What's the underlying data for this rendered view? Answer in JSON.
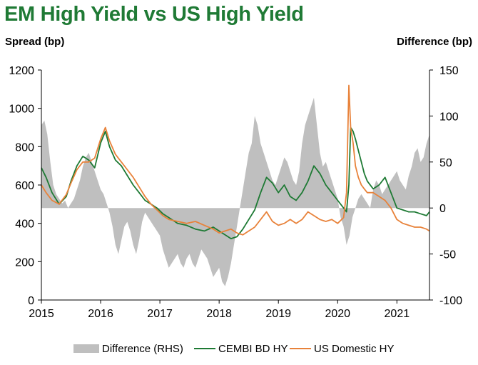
{
  "title": "EM High Yield vs US High Yield",
  "left_axis_label": "Spread (bp)",
  "right_axis_label": "Difference (bp)",
  "legend": [
    "Difference (RHS)",
    "CEMBI BD HY",
    "US Domestic HY"
  ],
  "colors": {
    "title": "#1f7a35",
    "cembi": "#1e7a34",
    "us": "#e8823a",
    "diff": "#bfbfbf"
  },
  "chart_data": {
    "type": "line",
    "title": "EM High Yield vs US High Yield",
    "x_ticks": [
      "2015",
      "2016",
      "2017",
      "2018",
      "2019",
      "2020",
      "2021"
    ],
    "xlim": [
      2015.0,
      2021.55
    ],
    "y_left": {
      "label": "Spread (bp)",
      "lim": [
        0,
        1200
      ],
      "ticks": [
        0,
        200,
        400,
        600,
        800,
        1000,
        1200
      ]
    },
    "y_right": {
      "label": "Difference (bp)",
      "lim": [
        -100,
        150
      ],
      "ticks": [
        -100,
        -50,
        0,
        50,
        100,
        150
      ]
    },
    "series": [
      {
        "name": "CEMBI BD HY",
        "axis": "left",
        "type": "line",
        "x": [
          2015.0,
          2015.08,
          2015.18,
          2015.3,
          2015.42,
          2015.5,
          2015.6,
          2015.7,
          2015.8,
          2015.9,
          2016.0,
          2016.08,
          2016.15,
          2016.25,
          2016.35,
          2016.45,
          2016.55,
          2016.65,
          2016.75,
          2016.85,
          2016.95,
          2017.05,
          2017.15,
          2017.3,
          2017.45,
          2017.6,
          2017.75,
          2017.9,
          2018.0,
          2018.1,
          2018.2,
          2018.3,
          2018.4,
          2018.5,
          2018.6,
          2018.7,
          2018.8,
          2018.9,
          2019.0,
          2019.1,
          2019.2,
          2019.3,
          2019.4,
          2019.5,
          2019.6,
          2019.7,
          2019.8,
          2019.9,
          2020.0,
          2020.1,
          2020.15,
          2020.19,
          2020.22,
          2020.26,
          2020.3,
          2020.35,
          2020.4,
          2020.45,
          2020.5,
          2020.6,
          2020.7,
          2020.8,
          2020.9,
          2021.0,
          2021.1,
          2021.2,
          2021.3,
          2021.4,
          2021.5,
          2021.55
        ],
        "y": [
          690,
          640,
          560,
          500,
          540,
          620,
          700,
          750,
          730,
          690,
          820,
          880,
          800,
          730,
          700,
          650,
          600,
          560,
          520,
          500,
          480,
          450,
          430,
          400,
          390,
          370,
          360,
          380,
          360,
          340,
          320,
          330,
          370,
          420,
          470,
          560,
          640,
          610,
          560,
          600,
          540,
          520,
          560,
          620,
          700,
          660,
          600,
          560,
          520,
          480,
          460,
          600,
          900,
          880,
          840,
          780,
          720,
          660,
          620,
          580,
          600,
          640,
          560,
          480,
          470,
          460,
          460,
          450,
          440,
          460
        ],
        "color": "#1e7a34"
      },
      {
        "name": "US Domestic HY",
        "axis": "left",
        "type": "line",
        "x": [
          2015.0,
          2015.08,
          2015.18,
          2015.3,
          2015.42,
          2015.5,
          2015.6,
          2015.7,
          2015.8,
          2015.9,
          2016.0,
          2016.08,
          2016.15,
          2016.25,
          2016.35,
          2016.45,
          2016.55,
          2016.65,
          2016.75,
          2016.85,
          2016.95,
          2017.05,
          2017.15,
          2017.3,
          2017.45,
          2017.6,
          2017.75,
          2017.9,
          2018.0,
          2018.1,
          2018.2,
          2018.3,
          2018.4,
          2018.5,
          2018.6,
          2018.7,
          2018.8,
          2018.9,
          2019.0,
          2019.1,
          2019.2,
          2019.3,
          2019.4,
          2019.5,
          2019.6,
          2019.7,
          2019.8,
          2019.9,
          2020.0,
          2020.1,
          2020.15,
          2020.19,
          2020.22,
          2020.26,
          2020.3,
          2020.35,
          2020.4,
          2020.45,
          2020.5,
          2020.6,
          2020.7,
          2020.8,
          2020.9,
          2021.0,
          2021.1,
          2021.2,
          2021.3,
          2021.4,
          2021.5,
          2021.55
        ],
        "y": [
          600,
          560,
          520,
          500,
          550,
          610,
          680,
          720,
          720,
          740,
          840,
          900,
          830,
          760,
          720,
          680,
          640,
          590,
          540,
          500,
          470,
          440,
          420,
          410,
          400,
          410,
          390,
          370,
          350,
          360,
          370,
          350,
          340,
          360,
          380,
          420,
          460,
          410,
          390,
          400,
          420,
          400,
          420,
          460,
          440,
          420,
          410,
          420,
          400,
          430,
          560,
          1120,
          900,
          820,
          700,
          640,
          600,
          580,
          560,
          560,
          540,
          520,
          480,
          420,
          400,
          390,
          380,
          380,
          370,
          360
        ],
        "color": "#e8823a"
      },
      {
        "name": "Difference (RHS)",
        "axis": "right",
        "type": "area",
        "x": [
          2015.0,
          2015.05,
          2015.1,
          2015.15,
          2015.2,
          2015.25,
          2015.3,
          2015.35,
          2015.4,
          2015.45,
          2015.5,
          2015.55,
          2015.6,
          2015.65,
          2015.7,
          2015.75,
          2015.8,
          2015.85,
          2015.9,
          2015.95,
          2016.0,
          2016.05,
          2016.1,
          2016.15,
          2016.2,
          2016.25,
          2016.3,
          2016.35,
          2016.4,
          2016.45,
          2016.5,
          2016.55,
          2016.6,
          2016.65,
          2016.7,
          2016.75,
          2016.8,
          2016.85,
          2016.9,
          2016.95,
          2017.0,
          2017.05,
          2017.1,
          2017.15,
          2017.2,
          2017.25,
          2017.3,
          2017.35,
          2017.4,
          2017.45,
          2017.5,
          2017.55,
          2017.6,
          2017.65,
          2017.7,
          2017.75,
          2017.8,
          2017.85,
          2017.9,
          2017.95,
          2018.0,
          2018.05,
          2018.1,
          2018.15,
          2018.2,
          2018.25,
          2018.3,
          2018.35,
          2018.4,
          2018.45,
          2018.5,
          2018.55,
          2018.6,
          2018.65,
          2018.7,
          2018.75,
          2018.8,
          2018.85,
          2018.9,
          2018.95,
          2019.0,
          2019.05,
          2019.1,
          2019.15,
          2019.2,
          2019.25,
          2019.3,
          2019.35,
          2019.4,
          2019.45,
          2019.5,
          2019.55,
          2019.6,
          2019.65,
          2019.7,
          2019.75,
          2019.8,
          2019.85,
          2019.9,
          2019.95,
          2020.0,
          2020.05,
          2020.1,
          2020.15,
          2020.2,
          2020.25,
          2020.3,
          2020.35,
          2020.4,
          2020.45,
          2020.5,
          2020.55,
          2020.6,
          2020.65,
          2020.7,
          2020.75,
          2020.8,
          2020.85,
          2020.9,
          2020.95,
          2021.0,
          2021.05,
          2021.1,
          2021.15,
          2021.2,
          2021.25,
          2021.3,
          2021.35,
          2021.4,
          2021.45,
          2021.5,
          2021.55
        ],
        "y": [
          90,
          95,
          80,
          50,
          25,
          15,
          10,
          5,
          8,
          0,
          5,
          10,
          20,
          30,
          45,
          55,
          60,
          50,
          40,
          30,
          20,
          15,
          5,
          -5,
          -20,
          -40,
          -50,
          -35,
          -20,
          -15,
          -25,
          -40,
          -50,
          -35,
          -15,
          -5,
          -10,
          -15,
          -20,
          -25,
          -30,
          -45,
          -55,
          -65,
          -60,
          -55,
          -50,
          -60,
          -65,
          -55,
          -50,
          -60,
          -65,
          -55,
          -45,
          -50,
          -55,
          -65,
          -75,
          -70,
          -65,
          -80,
          -85,
          -75,
          -60,
          -40,
          -20,
          0,
          20,
          40,
          60,
          70,
          100,
          90,
          70,
          60,
          50,
          40,
          30,
          25,
          35,
          45,
          55,
          50,
          40,
          30,
          25,
          40,
          70,
          90,
          100,
          110,
          120,
          90,
          60,
          45,
          50,
          40,
          30,
          20,
          10,
          -10,
          -20,
          -40,
          -30,
          -10,
          0,
          10,
          15,
          10,
          5,
          0,
          20,
          30,
          25,
          15,
          20,
          25,
          30,
          35,
          40,
          30,
          25,
          20,
          35,
          45,
          60,
          65,
          50,
          55,
          70,
          80
        ],
        "color": "#bfbfbf"
      }
    ],
    "legend_position": "bottom",
    "grid": false
  }
}
